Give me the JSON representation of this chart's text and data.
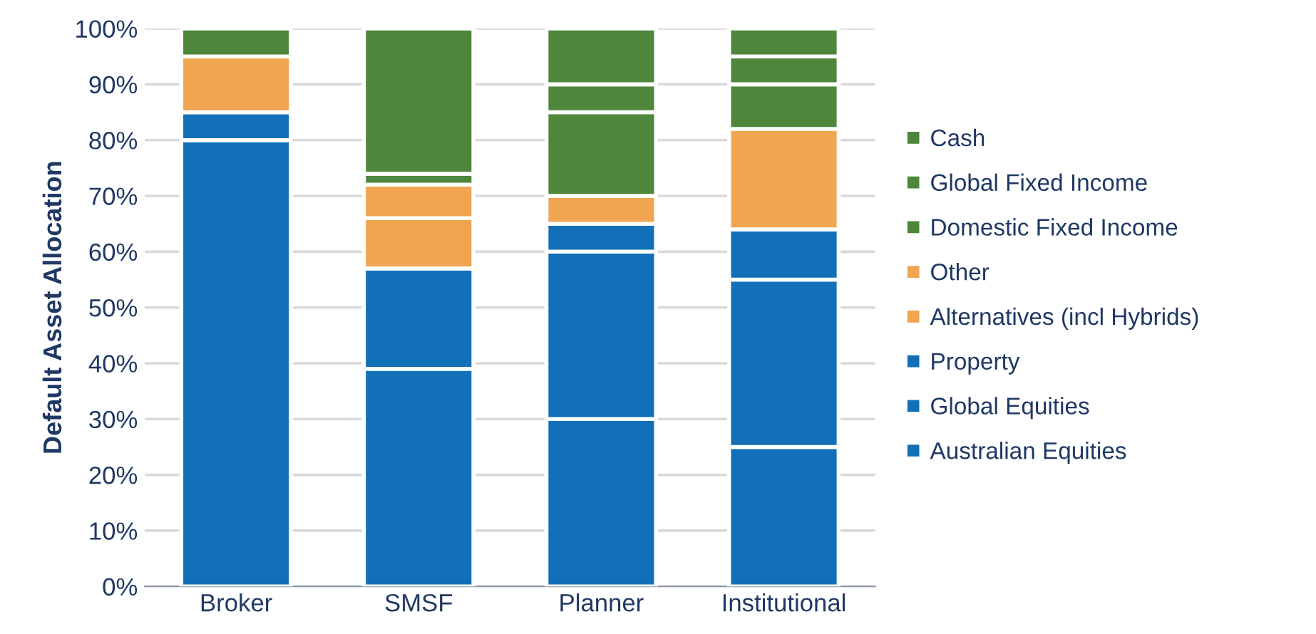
{
  "chart_data": {
    "type": "bar",
    "stacked": true,
    "ylabel": "Default Asset Allocation",
    "categories": [
      "Broker",
      "SMSF",
      "Planner",
      "Institutional"
    ],
    "series": [
      {
        "name": "Australian Equities",
        "color": "#1170b8",
        "values": [
          80,
          39,
          30,
          25
        ]
      },
      {
        "name": "Global Equities",
        "color": "#1170b8",
        "values": [
          5,
          18,
          30,
          30
        ]
      },
      {
        "name": "Property",
        "color": "#1170b8",
        "values": [
          0,
          0,
          5,
          9
        ]
      },
      {
        "name": "Alternatives (incl Hybrids)",
        "color": "#f0a550",
        "values": [
          10,
          9,
          5,
          18
        ]
      },
      {
        "name": "Other",
        "color": "#f0a550",
        "values": [
          0,
          6,
          0,
          0
        ]
      },
      {
        "name": "Domestic Fixed Income",
        "color": "#4e873c",
        "values": [
          0,
          2,
          15,
          8
        ]
      },
      {
        "name": "Global Fixed Income",
        "color": "#4e873c",
        "values": [
          0,
          0,
          5,
          5
        ]
      },
      {
        "name": "Cash",
        "color": "#4e873c",
        "values": [
          5,
          26,
          10,
          5
        ]
      }
    ],
    "ylim": [
      0,
      100
    ],
    "yticks": [
      {
        "value": 0,
        "label": "0%"
      },
      {
        "value": 10,
        "label": "10%"
      },
      {
        "value": 20,
        "label": "20%"
      },
      {
        "value": 30,
        "label": "30%"
      },
      {
        "value": 40,
        "label": "40%"
      },
      {
        "value": 50,
        "label": "50%"
      },
      {
        "value": 60,
        "label": "60%"
      },
      {
        "value": 70,
        "label": "70%"
      },
      {
        "value": 80,
        "label": "80%"
      },
      {
        "value": 90,
        "label": "90%"
      },
      {
        "value": 100,
        "label": "100%"
      }
    ],
    "grid": "y",
    "legend": "right"
  }
}
